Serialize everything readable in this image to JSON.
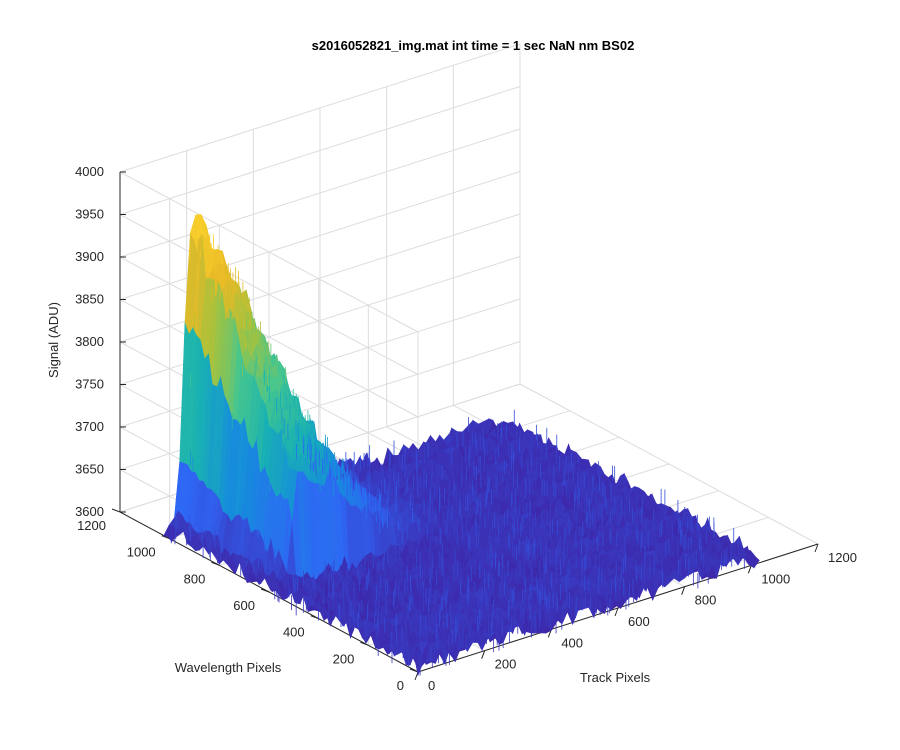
{
  "chart_data": {
    "type": "surface",
    "title": "s2016052821_img.mat int time = 1 sec  NaN nm BS02",
    "xlabel": "Track Pixels",
    "ylabel": "Wavelength Pixels",
    "zlabel": "Signal (ADU)",
    "xlim": [
      0,
      1200
    ],
    "ylim": [
      0,
      1200
    ],
    "zlim": [
      3600,
      4000
    ],
    "xticks": [
      "0",
      "200",
      "400",
      "600",
      "800",
      "1000",
      "1200"
    ],
    "yticks": [
      "0",
      "200",
      "400",
      "600",
      "800",
      "1000",
      "1200"
    ],
    "zticks": [
      "3600",
      "3650",
      "3700",
      "3750",
      "3800",
      "3850",
      "3900",
      "3950",
      "4000"
    ],
    "grid": true,
    "surface_extent": {
      "x": [
        0,
        1024
      ],
      "y": [
        0,
        1024
      ]
    },
    "baseline": 3608,
    "noise_amplitude": 12,
    "peak": {
      "ridge_x": 80,
      "y_start": 580,
      "y_end": 1024,
      "top_value_at_y_end": 3975,
      "value_at_y_start": 3730,
      "x_width": 230
    },
    "colormap": [
      "#3e26a8",
      "#2f66f5",
      "#178ade",
      "#18b1b3",
      "#47c68e",
      "#a6c23d",
      "#e8b926",
      "#f9d12c"
    ]
  }
}
